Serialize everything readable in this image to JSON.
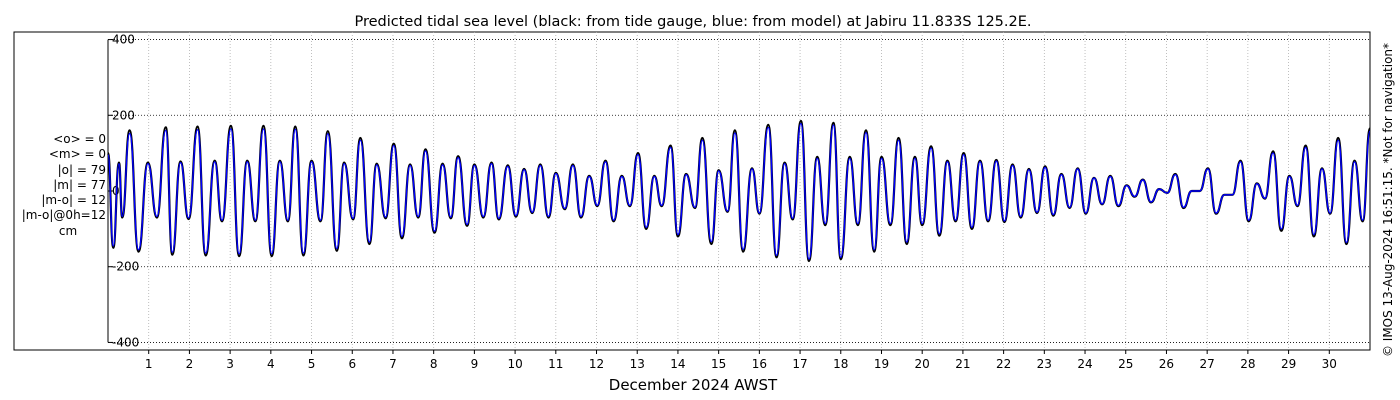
{
  "chart_data": {
    "type": "line",
    "title": "Predicted tidal sea level (black: from tide gauge, blue: from model) at Jabiru 11.833S 125.2E.",
    "xlabel": "December 2024 AWST",
    "ylabel": "",
    "xlim": [
      0,
      31
    ],
    "ylim": [
      -420,
      420
    ],
    "yticks": [
      -400,
      -200,
      0,
      200,
      400
    ],
    "ytick_labels": [
      "-400",
      "-200",
      "0",
      "200",
      "400"
    ],
    "xticks": [
      1,
      2,
      3,
      4,
      5,
      6,
      7,
      8,
      9,
      10,
      11,
      12,
      13,
      14,
      15,
      16,
      17,
      18,
      19,
      20,
      21,
      22,
      23,
      24,
      25,
      26,
      27,
      28,
      29,
      30
    ],
    "xtick_labels": [
      "1",
      "2",
      "3",
      "4",
      "5",
      "6",
      "7",
      "8",
      "9",
      "10",
      "11",
      "12",
      "13",
      "14",
      "15",
      "16",
      "17",
      "18",
      "19",
      "20",
      "21",
      "22",
      "23",
      "24",
      "25",
      "26",
      "27",
      "28",
      "29",
      "30"
    ],
    "grid": true,
    "series": [
      {
        "color": "#000000",
        "note_from_title": "from tide gauge",
        "x": [
          0.0,
          0.13,
          0.27,
          0.35,
          0.53,
          0.75,
          0.98,
          1.2,
          1.42,
          1.58,
          1.78,
          1.98,
          2.2,
          2.4,
          2.62,
          2.8,
          3.02,
          3.22,
          3.42,
          3.62,
          3.82,
          4.02,
          4.22,
          4.42,
          4.6,
          4.8,
          5.0,
          5.22,
          5.4,
          5.62,
          5.8,
          6.02,
          6.2,
          6.42,
          6.6,
          6.82,
          7.02,
          7.22,
          7.42,
          7.62,
          7.8,
          8.02,
          8.22,
          8.42,
          8.6,
          8.82,
          9.0,
          9.22,
          9.42,
          9.6,
          9.82,
          10.02,
          10.22,
          10.42,
          10.62,
          10.82,
          11.0,
          11.22,
          11.42,
          11.62,
          11.82,
          12.02,
          12.22,
          12.42,
          12.62,
          12.82,
          13.02,
          13.22,
          13.42,
          13.6,
          13.82,
          14.0,
          14.2,
          14.42,
          14.6,
          14.82,
          15.0,
          15.22,
          15.4,
          15.6,
          15.82,
          16.0,
          16.22,
          16.42,
          16.62,
          16.82,
          17.02,
          17.22,
          17.42,
          17.62,
          17.82,
          18.0,
          18.22,
          18.42,
          18.62,
          18.82,
          19.0,
          19.22,
          19.42,
          19.62,
          19.82,
          20.0,
          20.22,
          20.42,
          20.62,
          20.82,
          21.02,
          21.22,
          21.42,
          21.62,
          21.82,
          22.02,
          22.22,
          22.42,
          22.62,
          22.82,
          23.02,
          23.22,
          23.42,
          23.62,
          23.82,
          24.02,
          24.22,
          24.42,
          24.62,
          24.82,
          25.02,
          25.22,
          25.42,
          25.62,
          25.82,
          26.02,
          26.22,
          26.42,
          26.62,
          26.82,
          27.02,
          27.22,
          27.42,
          27.62,
          27.82,
          28.02,
          28.22,
          28.42,
          28.62,
          28.82,
          29.02,
          29.22,
          29.42,
          29.62,
          29.82,
          30.02,
          30.22,
          30.42,
          30.62,
          30.82,
          31.0
        ],
        "y": [
          100,
          -150,
          75,
          -70,
          160,
          -160,
          75,
          -70,
          168,
          -168,
          78,
          -74,
          170,
          -170,
          80,
          -80,
          172,
          -172,
          80,
          -80,
          172,
          -172,
          80,
          -80,
          170,
          -170,
          80,
          -80,
          158,
          -158,
          75,
          -75,
          140,
          -140,
          72,
          -72,
          125,
          -125,
          70,
          -70,
          110,
          -110,
          72,
          -72,
          92,
          -92,
          70,
          -70,
          75,
          -75,
          68,
          -68,
          58,
          -58,
          70,
          -70,
          48,
          -48,
          70,
          -70,
          40,
          -40,
          80,
          -80,
          40,
          -40,
          100,
          -100,
          40,
          -40,
          120,
          -120,
          45,
          -45,
          140,
          -140,
          55,
          -55,
          160,
          -160,
          60,
          -60,
          175,
          -175,
          75,
          -75,
          185,
          -185,
          90,
          -90,
          180,
          -180,
          90,
          -90,
          160,
          -160,
          90,
          -90,
          140,
          -140,
          90,
          -90,
          118,
          -118,
          80,
          -80,
          100,
          -100,
          80,
          -80,
          82,
          -82,
          70,
          -70,
          58,
          -58,
          65,
          -65,
          45,
          -45,
          60,
          -60,
          35,
          -35,
          40,
          -40,
          15,
          -15,
          30,
          -30,
          5,
          -5,
          45,
          -45,
          0,
          0,
          60,
          -60,
          -10,
          -10,
          80,
          -80,
          20,
          -20,
          105,
          -105,
          40,
          -40,
          120,
          -120,
          60,
          -60,
          140,
          -140,
          80,
          -80,
          165
        ]
      },
      {
        "color": "#0000ff",
        "note_from_title": "from model",
        "x": [
          0.0,
          0.13,
          0.27,
          0.35,
          0.53,
          0.75,
          0.98,
          1.2,
          1.42,
          1.58,
          1.78,
          1.98,
          2.2,
          2.4,
          2.62,
          2.8,
          3.02,
          3.22,
          3.42,
          3.62,
          3.82,
          4.02,
          4.22,
          4.42,
          4.6,
          4.8,
          5.0,
          5.22,
          5.4,
          5.62,
          5.8,
          6.02,
          6.2,
          6.42,
          6.6,
          6.82,
          7.02,
          7.22,
          7.42,
          7.62,
          7.8,
          8.02,
          8.22,
          8.42,
          8.6,
          8.82,
          9.0,
          9.22,
          9.42,
          9.6,
          9.82,
          10.02,
          10.22,
          10.42,
          10.62,
          10.82,
          11.0,
          11.22,
          11.42,
          11.62,
          11.82,
          12.02,
          12.22,
          12.42,
          12.62,
          12.82,
          13.02,
          13.22,
          13.42,
          13.6,
          13.82,
          14.0,
          14.2,
          14.42,
          14.6,
          14.82,
          15.0,
          15.22,
          15.4,
          15.6,
          15.82,
          16.0,
          16.22,
          16.42,
          16.62,
          16.82,
          17.02,
          17.22,
          17.42,
          17.62,
          17.82,
          18.0,
          18.22,
          18.42,
          18.62,
          18.82,
          19.0,
          19.22,
          19.42,
          19.62,
          19.82,
          20.0,
          20.22,
          20.42,
          20.62,
          20.82,
          21.02,
          21.22,
          21.42,
          21.62,
          21.82,
          22.02,
          22.22,
          22.42,
          22.62,
          22.82,
          23.02,
          23.22,
          23.42,
          23.62,
          23.82,
          24.02,
          24.22,
          24.42,
          24.62,
          24.82,
          25.02,
          25.22,
          25.42,
          25.62,
          25.82,
          26.02,
          26.22,
          26.42,
          26.62,
          26.82,
          27.02,
          27.22,
          27.42,
          27.62,
          27.82,
          28.02,
          28.22,
          28.42,
          28.62,
          28.82,
          29.02,
          29.22,
          29.42,
          29.62,
          29.82,
          30.02,
          30.22,
          30.42,
          30.62,
          30.82,
          31.0
        ],
        "y": [
          95,
          -145,
          72,
          -67,
          152,
          -155,
          72,
          -67,
          160,
          -162,
          75,
          -71,
          162,
          -164,
          77,
          -77,
          164,
          -166,
          77,
          -77,
          164,
          -166,
          77,
          -77,
          163,
          -164,
          77,
          -77,
          151,
          -152,
          72,
          -72,
          134,
          -135,
          69,
          -69,
          120,
          -120,
          67,
          -67,
          106,
          -106,
          69,
          -69,
          88,
          -88,
          67,
          -67,
          72,
          -72,
          65,
          -65,
          56,
          -56,
          67,
          -67,
          46,
          -46,
          67,
          -67,
          38,
          -38,
          77,
          -77,
          38,
          -38,
          96,
          -96,
          38,
          -38,
          115,
          -115,
          43,
          -43,
          134,
          -134,
          53,
          -53,
          153,
          -154,
          58,
          -58,
          168,
          -170,
          72,
          -72,
          178,
          -180,
          86,
          -86,
          174,
          -175,
          86,
          -86,
          154,
          -155,
          86,
          -86,
          134,
          -135,
          86,
          -86,
          113,
          -113,
          77,
          -77,
          96,
          -96,
          77,
          -77,
          79,
          -79,
          67,
          -67,
          56,
          -56,
          62,
          -62,
          43,
          -43,
          58,
          -58,
          34,
          -34,
          38,
          -38,
          14,
          -14,
          29,
          -29,
          5,
          -5,
          43,
          -43,
          0,
          0,
          58,
          -58,
          -10,
          -10,
          77,
          -77,
          19,
          -19,
          100,
          -100,
          38,
          -38,
          115,
          -115,
          58,
          -58,
          134,
          -136,
          77,
          -77,
          158
        ]
      }
    ]
  },
  "stats": {
    "lines": [
      "<o> = 0",
      "<m> = 0",
      "|o| = 79",
      "|m| = 77",
      "|m-o| = 12",
      "|m-o|@0h=12"
    ],
    "unit": "cm"
  },
  "credit": "© IMOS 13-Aug-2024 16:51:15. *Not for navigation*"
}
